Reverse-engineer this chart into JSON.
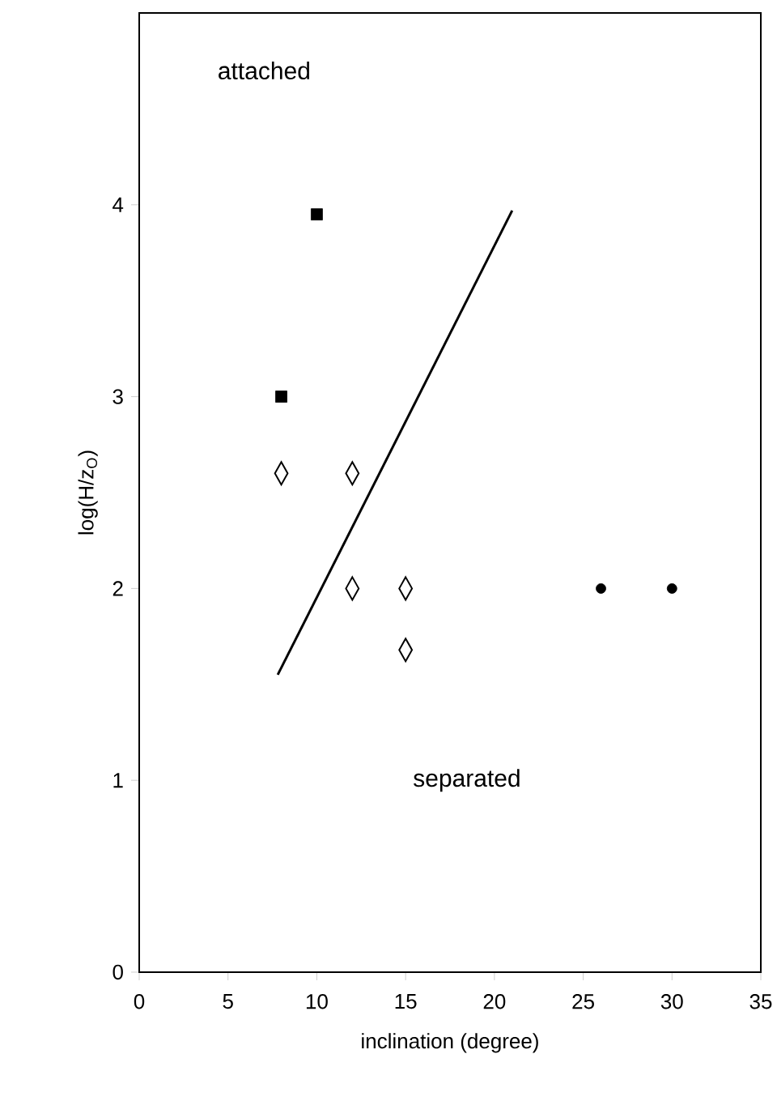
{
  "chart_data": {
    "type": "scatter",
    "xlabel": "inclination (degree)",
    "ylabel": "log(H/z$_{O}$)",
    "xlim": [
      0,
      35
    ],
    "ylim": [
      0,
      5
    ],
    "xticks": [
      0,
      5,
      10,
      15,
      20,
      25,
      30,
      35
    ],
    "yticks": [
      0,
      1,
      2,
      3,
      4
    ],
    "grid": false,
    "annotations": [
      "attached",
      "separated"
    ],
    "series": [
      {
        "marker": "square",
        "color": "#000000",
        "x": [
          8,
          10
        ],
        "values": [
          3.0,
          3.95
        ]
      },
      {
        "marker": "diamond",
        "color": "#000000",
        "x": [
          8,
          12,
          12,
          15,
          15
        ],
        "values": [
          2.6,
          2.6,
          2.0,
          2.0,
          1.68
        ]
      },
      {
        "marker": "circle",
        "color": "#000000",
        "x": [
          26,
          30
        ],
        "values": [
          2.0,
          2.0
        ]
      },
      {
        "type": "line",
        "marker": "none",
        "color": "#000000",
        "x": [
          7.8,
          21
        ],
        "values": [
          1.55,
          3.97
        ]
      }
    ]
  }
}
